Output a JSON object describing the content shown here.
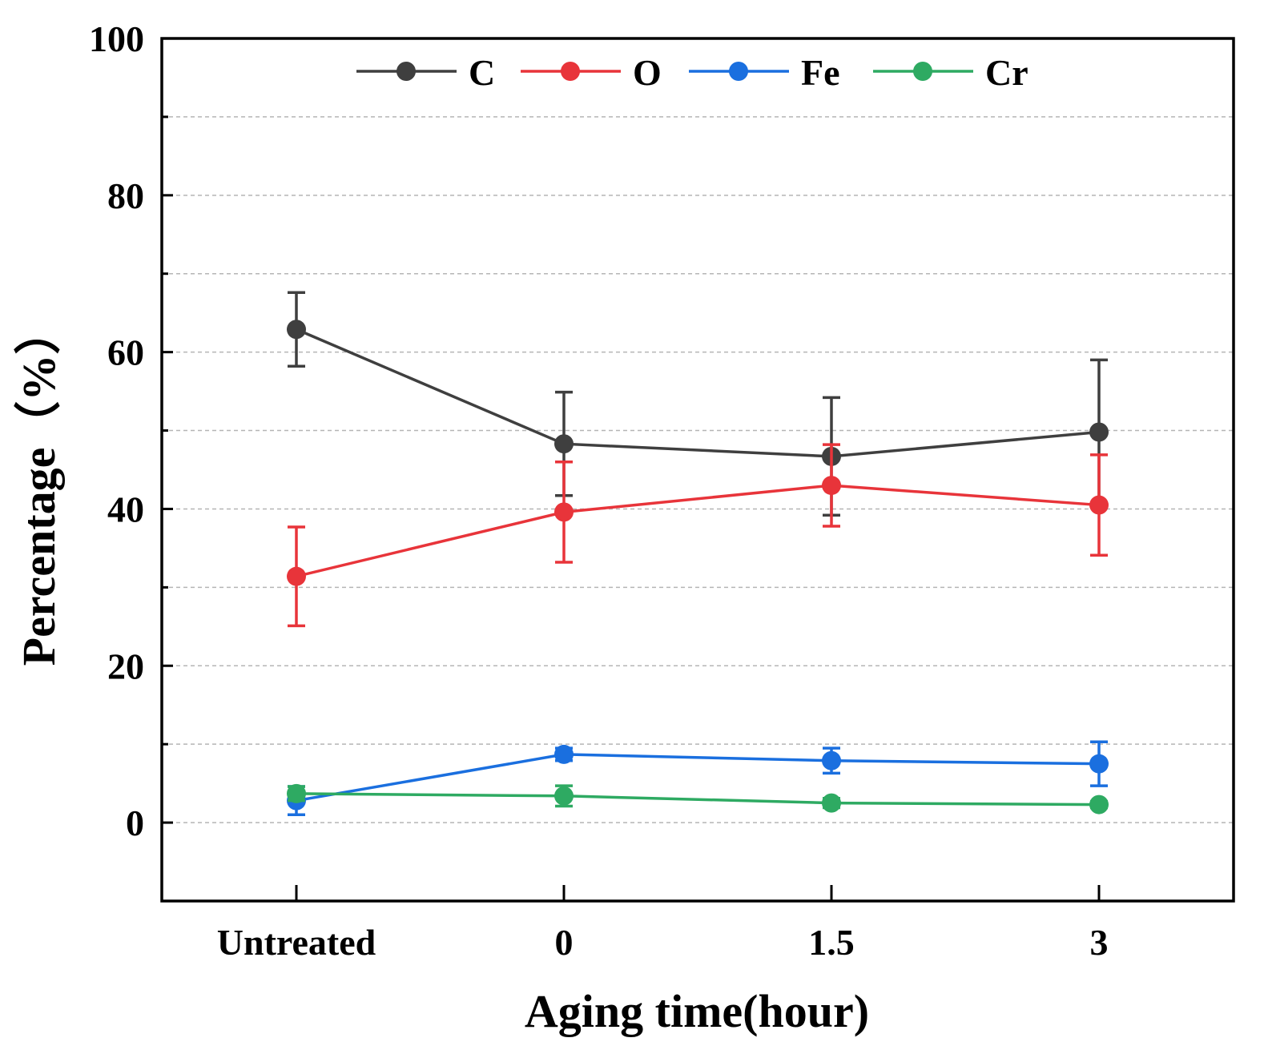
{
  "chart_data": {
    "type": "line",
    "categories": [
      "Untreated",
      "0",
      "1.5",
      "3"
    ],
    "xlabel": "Aging time(hour)",
    "ylabel": "Percentage（%）",
    "ylim": [
      -10,
      100
    ],
    "yticks": [
      0,
      20,
      40,
      60,
      80,
      100
    ],
    "ytick_labels": [
      "0",
      "20",
      "40",
      "60",
      "80",
      "100"
    ],
    "grid": "horizontal dashed",
    "legend_position": "top-center",
    "series": [
      {
        "name": "C",
        "color": "#3f3f3f",
        "values": [
          62.9,
          48.3,
          46.7,
          49.8
        ],
        "errors": [
          4.7,
          6.6,
          7.5,
          9.2
        ]
      },
      {
        "name": "O",
        "color": "#e8343a",
        "values": [
          31.4,
          39.6,
          43.0,
          40.5
        ],
        "errors": [
          6.3,
          6.4,
          5.2,
          6.4
        ]
      },
      {
        "name": "Fe",
        "color": "#1a6fdf",
        "values": [
          2.8,
          8.7,
          7.9,
          7.5
        ],
        "errors": [
          1.8,
          0.8,
          1.6,
          2.8
        ]
      },
      {
        "name": "Cr",
        "color": "#2eaa62",
        "values": [
          3.7,
          3.4,
          2.5,
          2.3
        ],
        "errors": [
          0.9,
          1.3,
          0.6,
          0.4
        ]
      }
    ]
  }
}
